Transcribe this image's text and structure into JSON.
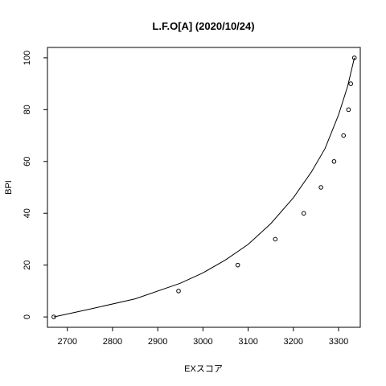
{
  "chart_data": {
    "type": "scatter",
    "title": "L.F.O[A] (2020/10/24)",
    "xlabel": "EXスコア",
    "ylabel": "BPI",
    "xlim": [
      2656,
      3348
    ],
    "ylim": [
      -4,
      104
    ],
    "x_ticks": [
      2700,
      2800,
      2900,
      3000,
      3100,
      3200,
      3300
    ],
    "y_ticks": [
      0,
      20,
      40,
      60,
      80,
      100
    ],
    "grid": false,
    "legend": "none",
    "points": [
      {
        "x": 2670,
        "y": 0
      },
      {
        "x": 2946,
        "y": 10
      },
      {
        "x": 3077,
        "y": 20
      },
      {
        "x": 3160,
        "y": 30
      },
      {
        "x": 3223,
        "y": 40
      },
      {
        "x": 3261,
        "y": 50
      },
      {
        "x": 3290,
        "y": 60
      },
      {
        "x": 3311,
        "y": 70
      },
      {
        "x": 3322,
        "y": 80
      },
      {
        "x": 3327,
        "y": 90
      },
      {
        "x": 3335,
        "y": 100
      }
    ],
    "curve": [
      {
        "x": 2670,
        "y": 0
      },
      {
        "x": 2750,
        "y": 3
      },
      {
        "x": 2850,
        "y": 7
      },
      {
        "x": 2950,
        "y": 13
      },
      {
        "x": 3000,
        "y": 17
      },
      {
        "x": 3050,
        "y": 22
      },
      {
        "x": 3100,
        "y": 28
      },
      {
        "x": 3150,
        "y": 36
      },
      {
        "x": 3200,
        "y": 46
      },
      {
        "x": 3240,
        "y": 56
      },
      {
        "x": 3270,
        "y": 65
      },
      {
        "x": 3300,
        "y": 78
      },
      {
        "x": 3320,
        "y": 89
      },
      {
        "x": 3335,
        "y": 100
      }
    ]
  }
}
